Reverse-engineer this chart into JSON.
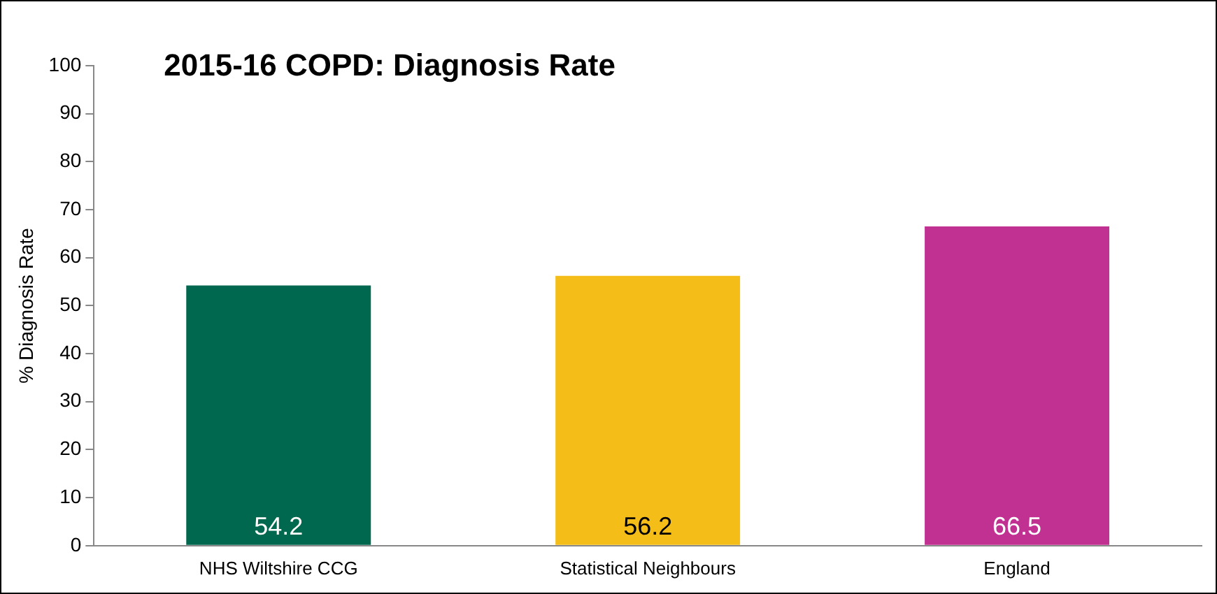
{
  "chart_data": {
    "type": "bar",
    "title": "2015-16 COPD: Diagnosis Rate",
    "ylabel": "% Diagnosis Rate",
    "categories": [
      "NHS Wiltshire CCG",
      "Statistical Neighbours",
      "England"
    ],
    "values": [
      54.2,
      56.2,
      66.5
    ],
    "colors": [
      "#00684f",
      "#f5bd17",
      "#c13192"
    ],
    "ylim": [
      0,
      100
    ],
    "yticks": [
      0,
      10,
      20,
      30,
      40,
      50,
      60,
      70,
      80,
      90,
      100
    ],
    "grid": false,
    "legend": false,
    "data_labels": true
  }
}
